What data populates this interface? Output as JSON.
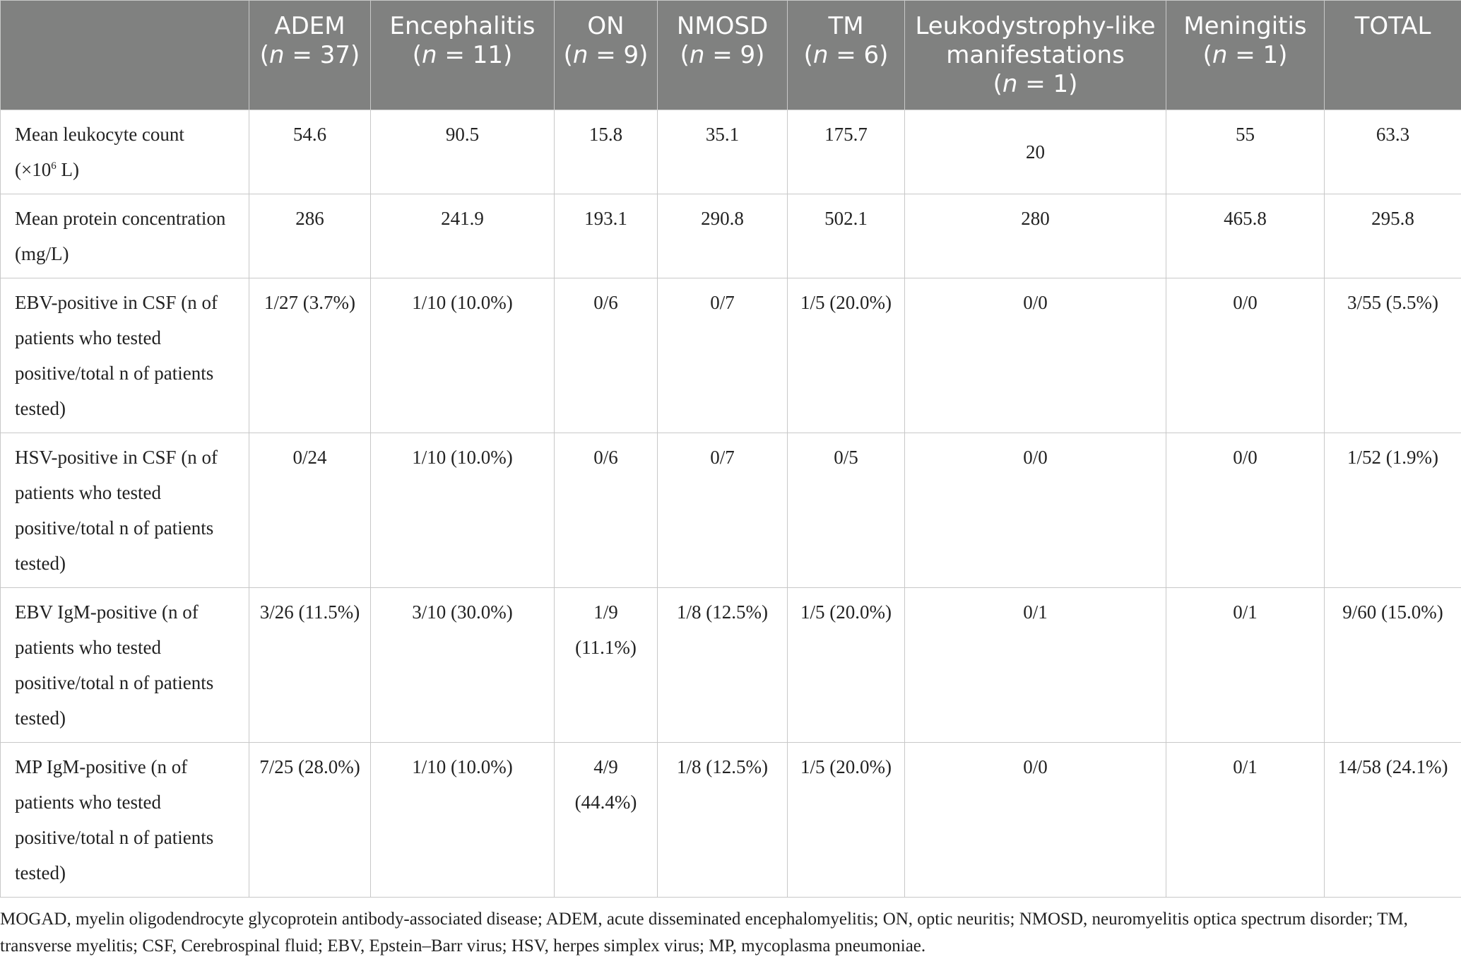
{
  "table": {
    "columns": [
      {
        "name": "ADEM",
        "n_label": "n",
        "n_value": " = 37)"
      },
      {
        "name": "Encephalitis",
        "n_label": "n",
        "n_value": " = 11)"
      },
      {
        "name": "ON",
        "n_label": "n",
        "n_value": " = 9)"
      },
      {
        "name": "NMOSD",
        "n_label": "n",
        "n_value": " = 9)"
      },
      {
        "name": "TM",
        "n_label": "n",
        "n_value": " = 6)"
      },
      {
        "name": "Leukodystrophy-like manifestations",
        "n_label": "n",
        "n_value": " = 1)"
      },
      {
        "name": "Meningitis",
        "n_label": "n",
        "n_value": " = 1)"
      },
      {
        "name": "TOTAL",
        "n_label": "",
        "n_value": ""
      }
    ],
    "rows": [
      {
        "label": "Mean leukocyte count",
        "unit_prefix": "(×10",
        "unit_sup": "6",
        "unit_suffix": " L)",
        "cells": [
          "54.6",
          "90.5",
          "15.8",
          "35.1",
          "175.7",
          "20",
          "55",
          "63.3"
        ]
      },
      {
        "label": "Mean protein concentration (mg/L)",
        "cells": [
          "286",
          "241.9",
          "193.1",
          "290.8",
          "502.1",
          "280",
          "465.8",
          "295.8"
        ]
      },
      {
        "label": "EBV-positive in CSF (n of patients who tested positive/total n of patients tested)",
        "cells": [
          "1/27 (3.7%)",
          "1/10 (10.0%)",
          "0/6",
          "0/7",
          "1/5 (20.0%)",
          "0/0",
          "0/0",
          "3/55 (5.5%)"
        ]
      },
      {
        "label": "HSV-positive in CSF (n of patients who tested positive/total n of patients tested)",
        "cells": [
          "0/24",
          "1/10 (10.0%)",
          "0/6",
          "0/7",
          "0/5",
          "0/0",
          "0/0",
          "1/52 (1.9%)"
        ]
      },
      {
        "label": "EBV IgM-positive (n of patients who tested positive/total n of patients tested)",
        "cells": [
          "3/26 (11.5%)",
          "3/10 (30.0%)",
          "1/9 (11.1%)",
          "1/8 (12.5%)",
          "1/5 (20.0%)",
          "0/1",
          "0/1",
          "9/60 (15.0%)"
        ]
      },
      {
        "label": "MP IgM-positive (n of patients who tested positive/total n of patients tested)",
        "cells": [
          "7/25 (28.0%)",
          "1/10 (10.0%)",
          "4/9 (44.4%)",
          "1/8 (12.5%)",
          "1/5 (20.0%)",
          "0/0",
          "0/1",
          "14/58 (24.1%)"
        ]
      }
    ]
  },
  "footnote": "MOGAD, myelin oligodendrocyte glycoprotein antibody-associated disease; ADEM, acute disseminated encephalomyelitis; ON, optic neuritis; NMOSD, neuromyelitis optica spectrum disorder; TM, transverse myelitis; CSF, Cerebrospinal fluid; EBV, Epstein–Barr virus; HSV, herpes simplex virus; MP, mycoplasma pneumoniae."
}
